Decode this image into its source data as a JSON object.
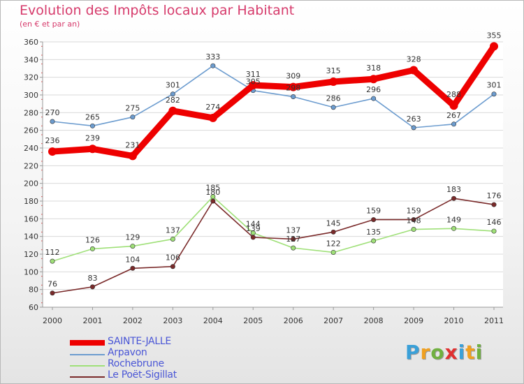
{
  "chart_data": {
    "type": "line",
    "title": "Evolution des Impôts locaux par Habitant",
    "subtitle": "(en € et par an)",
    "categories": [
      "2000",
      "2001",
      "2002",
      "2003",
      "2004",
      "2005",
      "2006",
      "2007",
      "2008",
      "2009",
      "2010",
      "2011"
    ],
    "ylim": [
      60,
      360
    ],
    "yticks": [
      60,
      80,
      100,
      120,
      140,
      160,
      180,
      200,
      220,
      240,
      260,
      280,
      300,
      320,
      340,
      360
    ],
    "series": [
      {
        "name": "SAINTE-JALLE",
        "color": "#ee0000",
        "values": [
          236,
          239,
          231,
          282,
          274,
          311,
          309,
          315,
          318,
          328,
          288,
          355
        ]
      },
      {
        "name": "Arpavon",
        "color": "#6c9ccf",
        "values": [
          270,
          265,
          275,
          301,
          333,
          305,
          298,
          286,
          296,
          263,
          267,
          301
        ]
      },
      {
        "name": "Rochebrune",
        "color": "#9fe078",
        "values": [
          112,
          126,
          129,
          137,
          185,
          144,
          127,
          122,
          135,
          148,
          149,
          146
        ]
      },
      {
        "name": "Le Poët-Sigillat",
        "color": "#7a2a2a",
        "values": [
          76,
          83,
          104,
          106,
          180,
          139,
          137,
          145,
          159,
          159,
          183,
          176
        ]
      }
    ],
    "data_labels": [
      {
        "series": 0,
        "labels": [
          "236",
          "239",
          "231",
          "282",
          "274",
          "311",
          "309",
          "315",
          "318",
          "328",
          "288",
          "355"
        ]
      },
      {
        "series": 1,
        "labels": [
          "270",
          "265",
          "275",
          "301",
          "333",
          "305",
          "298",
          "286",
          "296",
          "263",
          "267",
          "301"
        ]
      },
      {
        "series": 2,
        "labels": [
          "112",
          "126",
          "129",
          "137",
          "185",
          "144",
          "127",
          "122",
          "135",
          "148",
          "149",
          "146"
        ]
      },
      {
        "series": 3,
        "labels": [
          "76",
          "83",
          "104",
          "106",
          "180",
          "139",
          "137",
          "145",
          "159",
          "159",
          "183",
          "176"
        ]
      }
    ]
  },
  "legend": {
    "items": [
      {
        "label": "SAINTE-JALLE",
        "color": "#ee0000"
      },
      {
        "label": "Arpavon",
        "color": "#6c9ccf"
      },
      {
        "label": "Rochebrune",
        "color": "#9fe078"
      },
      {
        "label": "Le Poët-Sigillat",
        "color": "#7a2a2a"
      }
    ]
  },
  "brand": {
    "letters": [
      "P",
      "r",
      "o",
      "x",
      "i",
      "t",
      "i"
    ],
    "colors": [
      "#3aa0d8",
      "#f0a020",
      "#70b040",
      "#e03030",
      "#3aa0d8",
      "#f0a020",
      "#70b040"
    ]
  }
}
